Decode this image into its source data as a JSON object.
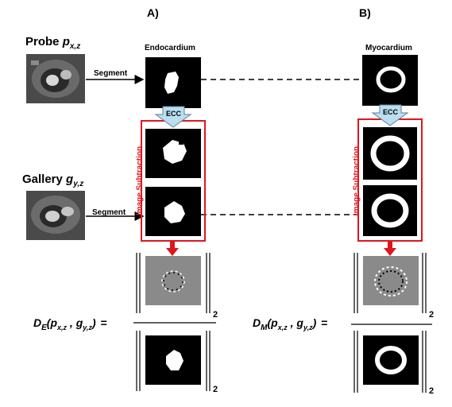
{
  "column_a": {
    "title": "A)",
    "mask_label": "Endocardium"
  },
  "column_b": {
    "title": "B)",
    "mask_label": "Myocardium"
  },
  "probe": {
    "label": "Probe",
    "symbol": "p",
    "subscript": "x,z"
  },
  "gallery": {
    "label": "Gallery",
    "symbol": "g",
    "subscript": "y,z"
  },
  "arrows": {
    "segment_label": "Segment",
    "ecc_label": "ECC"
  },
  "subtraction_label": "Image Subtraction",
  "norm_subscript": "2",
  "formula_a": {
    "lhs": "D",
    "lhs_sub": "E",
    "args": "(p",
    "p_sub": "x,z",
    "comma": " , g",
    "g_sub": "y,z",
    "close": ")",
    "equals": "="
  },
  "formula_b": {
    "lhs": "D",
    "lhs_sub": "M",
    "args": "(p",
    "p_sub": "x,z",
    "comma": " , g",
    "g_sub": "y,z",
    "close": ")",
    "equals": "="
  },
  "colors": {
    "red": "#e0161e",
    "ecc_fill": "#b9dff0",
    "ecc_border": "#5f7f9a",
    "panel": "#000000",
    "diff_gray": "#8a8a8a"
  }
}
